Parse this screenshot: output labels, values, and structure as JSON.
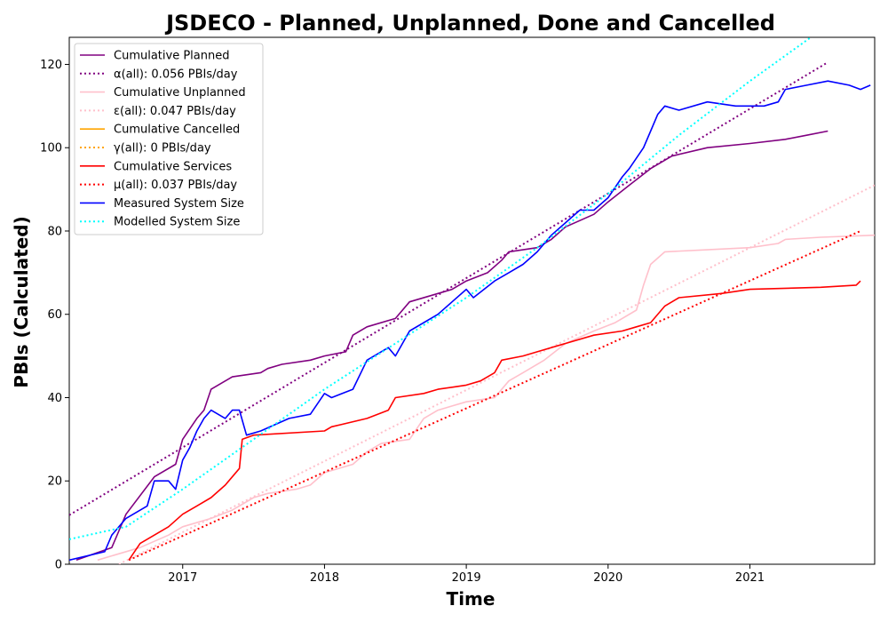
{
  "chart_data": {
    "type": "line",
    "title": "JSDECO - Planned, Unplanned, Done  and Cancelled",
    "xlabel": "Time",
    "ylabel": "PBIs (Calculated)",
    "xlim": [
      2016.2,
      2021.88
    ],
    "ylim": [
      0,
      126.5
    ],
    "x_ticks": [
      2017,
      2018,
      2019,
      2020,
      2021
    ],
    "x_tick_labels": [
      "2017",
      "2018",
      "2019",
      "2020",
      "2021"
    ],
    "y_ticks": [
      0,
      20,
      40,
      60,
      80,
      100,
      120
    ],
    "y_tick_labels": [
      "0",
      "20",
      "40",
      "60",
      "80",
      "100",
      "120"
    ],
    "legend_position": "upper-left",
    "grid": false,
    "series": [
      {
        "name": "Cumulative Planned",
        "color": "#800080",
        "style": "solid",
        "points": [
          [
            2016.25,
            1
          ],
          [
            2016.5,
            4
          ],
          [
            2016.6,
            12
          ],
          [
            2016.8,
            21
          ],
          [
            2016.95,
            24
          ],
          [
            2017.0,
            30
          ],
          [
            2017.1,
            35
          ],
          [
            2017.15,
            37
          ],
          [
            2017.2,
            42
          ],
          [
            2017.3,
            44
          ],
          [
            2017.35,
            45
          ],
          [
            2017.55,
            46
          ],
          [
            2017.6,
            47
          ],
          [
            2017.7,
            48
          ],
          [
            2017.9,
            49
          ],
          [
            2018.0,
            50
          ],
          [
            2018.15,
            51
          ],
          [
            2018.2,
            55
          ],
          [
            2018.3,
            57
          ],
          [
            2018.5,
            59
          ],
          [
            2018.6,
            63
          ],
          [
            2018.8,
            65
          ],
          [
            2018.9,
            66
          ],
          [
            2019.0,
            68
          ],
          [
            2019.15,
            70
          ],
          [
            2019.25,
            73
          ],
          [
            2019.3,
            75
          ],
          [
            2019.5,
            76
          ],
          [
            2019.6,
            78
          ],
          [
            2019.7,
            81
          ],
          [
            2019.9,
            84
          ],
          [
            2020.0,
            87
          ],
          [
            2020.15,
            91
          ],
          [
            2020.3,
            95
          ],
          [
            2020.45,
            98
          ],
          [
            2020.7,
            100
          ],
          [
            2021.0,
            101
          ],
          [
            2021.25,
            102
          ],
          [
            2021.4,
            103
          ],
          [
            2021.55,
            104
          ]
        ]
      },
      {
        "name": "α(all): 0.056 PBIs/day",
        "color": "#800080",
        "style": "dotted",
        "points": [
          [
            2016.2,
            11.8
          ],
          [
            2021.55,
            120.5
          ]
        ]
      },
      {
        "name": "Cumulative Unplanned",
        "color": "#ffc0cb",
        "style": "solid",
        "points": [
          [
            2016.4,
            1
          ],
          [
            2016.7,
            4
          ],
          [
            2016.9,
            7
          ],
          [
            2017.0,
            9
          ],
          [
            2017.2,
            11
          ],
          [
            2017.35,
            13
          ],
          [
            2017.5,
            16
          ],
          [
            2017.6,
            17
          ],
          [
            2017.8,
            18
          ],
          [
            2017.9,
            19
          ],
          [
            2018.0,
            22
          ],
          [
            2018.2,
            24
          ],
          [
            2018.3,
            27
          ],
          [
            2018.4,
            29
          ],
          [
            2018.6,
            30
          ],
          [
            2018.7,
            35
          ],
          [
            2018.8,
            37
          ],
          [
            2018.9,
            38
          ],
          [
            2019.0,
            39
          ],
          [
            2019.2,
            40
          ],
          [
            2019.3,
            44
          ],
          [
            2019.4,
            46
          ],
          [
            2019.55,
            49
          ],
          [
            2019.7,
            53
          ],
          [
            2019.9,
            56
          ],
          [
            2020.05,
            58
          ],
          [
            2020.2,
            61
          ],
          [
            2020.25,
            67
          ],
          [
            2020.3,
            72
          ],
          [
            2020.4,
            75
          ],
          [
            2020.7,
            75.5
          ],
          [
            2021.0,
            76
          ],
          [
            2021.2,
            77
          ],
          [
            2021.25,
            78
          ],
          [
            2021.5,
            78.5
          ],
          [
            2021.88,
            79
          ]
        ]
      },
      {
        "name": "ε(all): 0.047 PBIs/day",
        "color": "#ffc0cb",
        "style": "dotted",
        "points": [
          [
            2016.55,
            0
          ],
          [
            2021.88,
            91
          ]
        ]
      },
      {
        "name": "Cumulative Cancelled",
        "color": "#ffa500",
        "style": "solid",
        "points": []
      },
      {
        "name": "γ(all): 0 PBIs/day",
        "color": "#ffa500",
        "style": "dotted",
        "points": []
      },
      {
        "name": "Cumulative Services",
        "color": "#ff0000",
        "style": "solid",
        "points": [
          [
            2016.62,
            1
          ],
          [
            2016.7,
            5
          ],
          [
            2016.8,
            7
          ],
          [
            2016.9,
            9
          ],
          [
            2017.0,
            12
          ],
          [
            2017.1,
            14
          ],
          [
            2017.2,
            16
          ],
          [
            2017.3,
            19
          ],
          [
            2017.4,
            23
          ],
          [
            2017.42,
            30
          ],
          [
            2017.5,
            31
          ],
          [
            2018.0,
            32
          ],
          [
            2018.05,
            33
          ],
          [
            2018.3,
            35
          ],
          [
            2018.45,
            37
          ],
          [
            2018.5,
            40
          ],
          [
            2018.7,
            41
          ],
          [
            2018.8,
            42
          ],
          [
            2018.9,
            42.5
          ],
          [
            2019.0,
            43
          ],
          [
            2019.1,
            44
          ],
          [
            2019.2,
            46
          ],
          [
            2019.25,
            49
          ],
          [
            2019.4,
            50
          ],
          [
            2019.5,
            51
          ],
          [
            2019.7,
            53
          ],
          [
            2019.9,
            55
          ],
          [
            2020.1,
            56
          ],
          [
            2020.2,
            57
          ],
          [
            2020.3,
            58
          ],
          [
            2020.4,
            62
          ],
          [
            2020.5,
            64
          ],
          [
            2020.8,
            65
          ],
          [
            2021.0,
            66
          ],
          [
            2021.5,
            66.5
          ],
          [
            2021.75,
            67
          ],
          [
            2021.78,
            68
          ]
        ]
      },
      {
        "name": "μ(all): 0.037 PBIs/day",
        "color": "#ff0000",
        "style": "dotted",
        "points": [
          [
            2016.62,
            1
          ],
          [
            2021.78,
            80
          ]
        ]
      },
      {
        "name": "Measured System Size",
        "color": "#0000ff",
        "style": "solid",
        "points": [
          [
            2016.2,
            1
          ],
          [
            2016.45,
            3
          ],
          [
            2016.5,
            7
          ],
          [
            2016.6,
            11
          ],
          [
            2016.75,
            14
          ],
          [
            2016.8,
            20
          ],
          [
            2016.9,
            20
          ],
          [
            2016.95,
            18
          ],
          [
            2017.0,
            25
          ],
          [
            2017.05,
            28
          ],
          [
            2017.1,
            32
          ],
          [
            2017.15,
            35
          ],
          [
            2017.2,
            37
          ],
          [
            2017.3,
            35
          ],
          [
            2017.35,
            37
          ],
          [
            2017.4,
            37
          ],
          [
            2017.45,
            31
          ],
          [
            2017.55,
            32
          ],
          [
            2017.75,
            35
          ],
          [
            2017.9,
            36
          ],
          [
            2018.0,
            41
          ],
          [
            2018.05,
            40
          ],
          [
            2018.2,
            42
          ],
          [
            2018.3,
            49
          ],
          [
            2018.45,
            52
          ],
          [
            2018.5,
            50
          ],
          [
            2018.6,
            56
          ],
          [
            2018.8,
            60
          ],
          [
            2018.9,
            63
          ],
          [
            2019.0,
            66
          ],
          [
            2019.05,
            64
          ],
          [
            2019.2,
            68
          ],
          [
            2019.3,
            70
          ],
          [
            2019.4,
            72
          ],
          [
            2019.5,
            75
          ],
          [
            2019.6,
            79
          ],
          [
            2019.7,
            82
          ],
          [
            2019.8,
            85
          ],
          [
            2019.9,
            85
          ],
          [
            2020.0,
            88
          ],
          [
            2020.1,
            93
          ],
          [
            2020.15,
            95
          ],
          [
            2020.25,
            100
          ],
          [
            2020.3,
            104
          ],
          [
            2020.35,
            108
          ],
          [
            2020.4,
            110
          ],
          [
            2020.5,
            109
          ],
          [
            2020.7,
            111
          ],
          [
            2020.9,
            110
          ],
          [
            2021.1,
            110
          ],
          [
            2021.2,
            111
          ],
          [
            2021.25,
            114
          ],
          [
            2021.4,
            115
          ],
          [
            2021.55,
            116
          ],
          [
            2021.7,
            115
          ],
          [
            2021.78,
            114
          ],
          [
            2021.85,
            115
          ]
        ]
      },
      {
        "name": "Modelled System Size",
        "color": "#00ffff",
        "style": "dotted",
        "points": [
          [
            2016.2,
            6
          ],
          [
            2016.6,
            9
          ],
          [
            2017.0,
            18
          ],
          [
            2017.5,
            30
          ],
          [
            2018.0,
            42
          ],
          [
            2018.5,
            53
          ],
          [
            2019.0,
            64
          ],
          [
            2019.5,
            76
          ],
          [
            2020.0,
            89
          ],
          [
            2020.5,
            103
          ],
          [
            2021.0,
            116
          ],
          [
            2021.45,
            127
          ]
        ]
      }
    ]
  }
}
